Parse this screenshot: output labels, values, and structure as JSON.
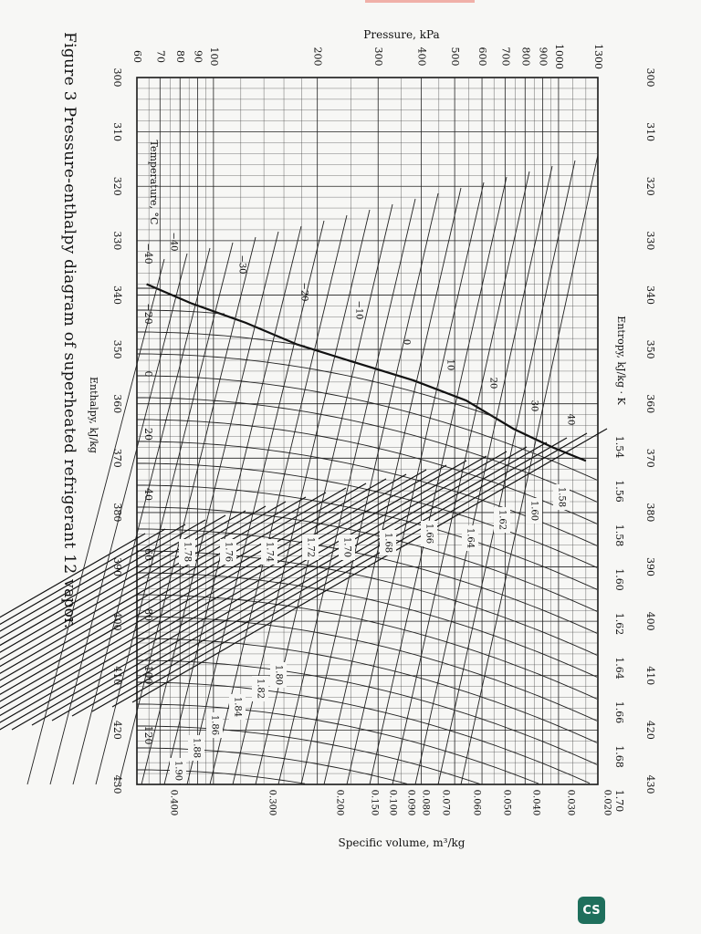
{
  "caption": "Figure 3 Pressure-enthalpy diagram of superheated refrigerant 12 vapor.",
  "badge": "CS",
  "chart_data": {
    "type": "line",
    "title": "Pressure-enthalpy diagram of superheated refrigerant 12 vapor",
    "enthalpy_axis": {
      "label": "Enthalpy, kJ/kg",
      "range": [
        300,
        430
      ],
      "ticks": [
        "300",
        "310",
        "320",
        "330",
        "340",
        "350",
        "360",
        "370",
        "380",
        "390",
        "400",
        "410",
        "420",
        "430"
      ]
    },
    "pressure_axis": {
      "label": "Pressure, kPa",
      "scale": "log",
      "range": [
        60,
        1300
      ],
      "ticks": [
        "60",
        "70",
        "80",
        "90",
        "100",
        "200",
        "300",
        "400",
        "500",
        "600",
        "700",
        "800",
        "900",
        "1000",
        "1300"
      ]
    },
    "entropy_axis": {
      "label": "Entropy, kJ/kg · K",
      "ticks": [
        "1.54",
        "1.56",
        "1.58",
        "1.60",
        "1.62",
        "1.64",
        "1.66",
        "1.68",
        "1.70"
      ]
    },
    "temperature_axis": {
      "label": "Temperature, °C",
      "ticks": [
        "−40",
        "−20",
        "0",
        "20",
        "40",
        "60",
        "80",
        "100",
        "120"
      ]
    },
    "specific_volume_axis": {
      "label": "Specific volume, m³/kg",
      "ticks": [
        "0.020",
        "0.030",
        "0.040",
        "0.050",
        "0.060",
        "0.070",
        "0.080",
        "0.090",
        "0.100",
        "0.150",
        "0.200",
        "0.300",
        "0.400"
      ]
    },
    "saturation_labels": [
      "−40",
      "−30",
      "−20",
      "−10",
      "0",
      "10",
      "20",
      "30",
      "40"
    ],
    "entropy_line_labels": [
      "1.58",
      "1.60",
      "1.62",
      "1.64",
      "1.66",
      "1.68",
      "1.70",
      "1.72",
      "1.74",
      "1.76",
      "1.78",
      "1.80",
      "1.82",
      "1.84",
      "1.86",
      "1.88",
      "1.90"
    ],
    "saturated_vapor_line": [
      {
        "h": 338.0,
        "p": 64
      },
      {
        "h": 341.5,
        "p": 86
      },
      {
        "h": 345.1,
        "p": 124
      },
      {
        "h": 349.1,
        "p": 175
      },
      {
        "h": 352.5,
        "p": 260
      },
      {
        "h": 355.7,
        "p": 380
      },
      {
        "h": 359.4,
        "p": 540
      },
      {
        "h": 364.6,
        "p": 740
      },
      {
        "h": 368.0,
        "p": 960
      },
      {
        "h": 370.5,
        "p": 1200
      }
    ],
    "grid": true
  }
}
